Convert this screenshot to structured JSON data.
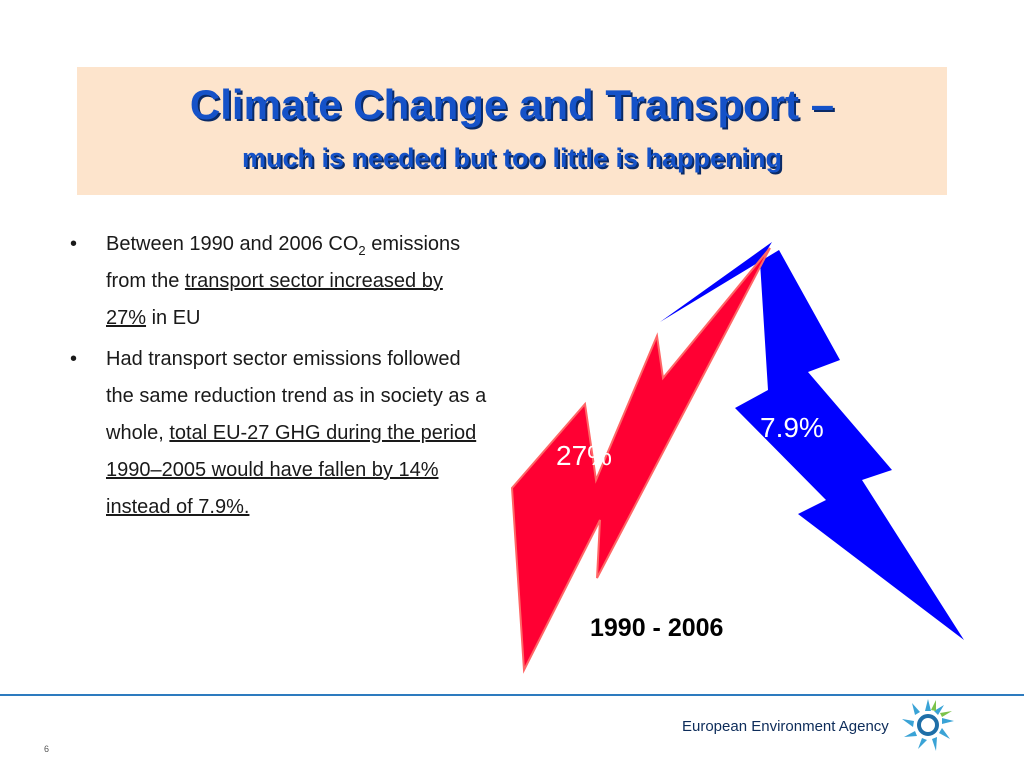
{
  "slide": {
    "title": "Climate Change and Transport –",
    "subtitle": "much is needed but too little is happening",
    "bullets": [
      {
        "text_1": "Between 1990 and 2006 CO",
        "sub": "2",
        "text_2": " emissions from the ",
        "underlined": "transport sector increased by 27%",
        "text_3": " in EU"
      },
      {
        "text_1": "Had transport sector emissions followed the same reduction trend as in society as a whole, ",
        "underlined": "total EU-27 GHG during the period 1990–2005 would have fallen by 14% instead of 7.9%."
      }
    ],
    "bolt_red_label": "27%",
    "bolt_blue_label": "7.9%",
    "period_label": "1990 - 2006",
    "colors": {
      "red_bolt": "#ff0033",
      "blue_bolt": "#0000ff",
      "title_blue": "#1552c8"
    }
  },
  "footer": {
    "agency": "European Environment Agency",
    "page_number": "6"
  }
}
